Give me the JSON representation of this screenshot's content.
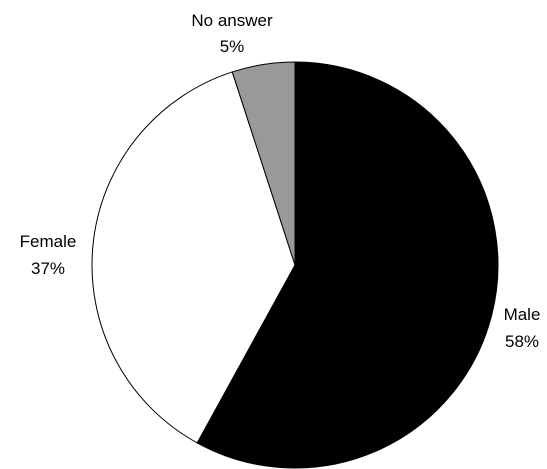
{
  "chart_data": {
    "type": "pie",
    "title": "",
    "legend": "none",
    "start_angle_deg": 0,
    "direction": "clockwise",
    "slices": [
      {
        "label": "Male",
        "value": 58,
        "value_label": "58%",
        "color": "#000000"
      },
      {
        "label": "Female",
        "value": 37,
        "value_label": "37%",
        "color": "#ffffff"
      },
      {
        "label": "No answer",
        "value": 5,
        "value_label": "5%",
        "color": "#999999"
      }
    ]
  }
}
